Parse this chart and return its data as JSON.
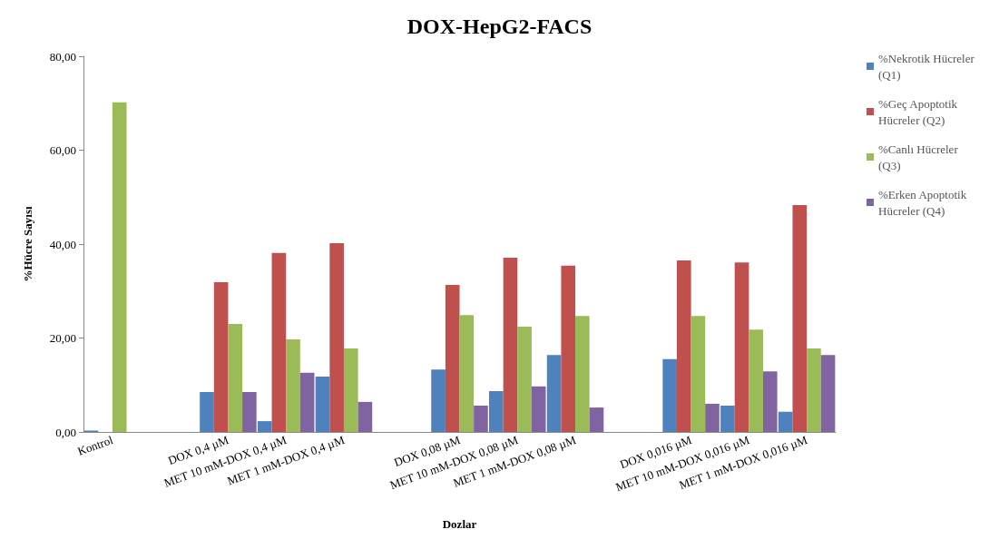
{
  "chart_data": {
    "type": "bar",
    "title": "DOX-HepG2-FACS",
    "xlabel": "Dozlar",
    "ylabel": "%Hücre Sayısı",
    "categories": [
      "Kontrol",
      null,
      "DOX 0,4 µM",
      "MET 10 mM-DOX 0,4 µM",
      "MET 1 mM-DOX 0,4 µM",
      null,
      "DOX 0,08 µM",
      "MET 10 mM-DOX 0,08 µM",
      "MET 1 mM-DOX 0,08 µM",
      null,
      "DOX 0,016 µM",
      "MET 10 mM-DOX 0,016 µM",
      "MET 1 mM-DOX 0,016 µM"
    ],
    "series": [
      {
        "name": "%Nekrotik Hücreler (Q1)",
        "color": "#4f81bd",
        "values": [
          0.3,
          null,
          8.5,
          2.3,
          11.8,
          null,
          13.3,
          8.7,
          16.4,
          null,
          15.5,
          5.6,
          4.3
        ]
      },
      {
        "name": "%Geç Apoptotik Hücreler (Q2)",
        "color": "#c0504d",
        "values": [
          null,
          null,
          31.9,
          38.1,
          40.2,
          null,
          31.3,
          37.1,
          35.4,
          null,
          36.5,
          36.1,
          48.3
        ]
      },
      {
        "name": "%Canlı Hücreler (Q3)",
        "color": "#9bbb59",
        "values": [
          70.2,
          null,
          23.0,
          19.7,
          17.8,
          null,
          24.9,
          22.4,
          24.7,
          null,
          24.7,
          21.8,
          17.8
        ]
      },
      {
        "name": "%Erken Apoptotik Hücreler (Q4)",
        "color": "#8064a2",
        "values": [
          null,
          null,
          8.5,
          12.6,
          6.4,
          null,
          5.6,
          9.7,
          5.2,
          null,
          6.0,
          12.9,
          16.4
        ]
      }
    ],
    "ylim": [
      0,
      80
    ],
    "yticks": [
      {
        "value": 0,
        "label": "0,00"
      },
      {
        "value": 20,
        "label": "20,00"
      },
      {
        "value": 40,
        "label": "40,00"
      },
      {
        "value": 60,
        "label": "60,00"
      },
      {
        "value": 80,
        "label": "80,00"
      }
    ],
    "grid": false,
    "legend": "right"
  }
}
